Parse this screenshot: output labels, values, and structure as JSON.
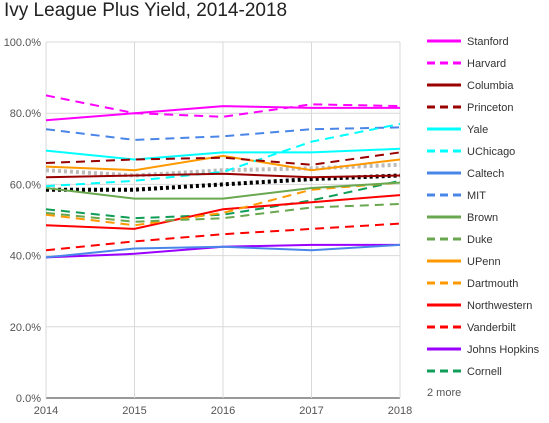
{
  "chart_data": {
    "type": "line",
    "title": "Ivy League Plus Yield, 2014-2018",
    "x": [
      "2014",
      "2015",
      "2016",
      "2017",
      "2018"
    ],
    "ylim": [
      0,
      100
    ],
    "y_ticks": [
      "0.0%",
      "20.0%",
      "40.0%",
      "60.0%",
      "80.0%",
      "100.0%"
    ],
    "grid": true,
    "legend_position": "right",
    "legend_more": "2 more",
    "series": [
      {
        "name": "Stanford",
        "values": [
          78,
          80,
          82,
          81.5,
          81.5
        ],
        "color": "#ff00ff",
        "dashed": false,
        "show_in_legend": true
      },
      {
        "name": "Harvard",
        "values": [
          85,
          80,
          79,
          82.5,
          82
        ],
        "color": "#ff00ff",
        "dashed": true,
        "show_in_legend": true
      },
      {
        "name": "Columbia",
        "values": [
          62,
          62.5,
          63,
          62,
          62.5
        ],
        "color": "#990000",
        "dashed": false,
        "show_in_legend": true
      },
      {
        "name": "Princeton",
        "values": [
          66,
          67,
          67.5,
          65.5,
          69
        ],
        "color": "#990000",
        "dashed": true,
        "show_in_legend": true
      },
      {
        "name": "Yale",
        "values": [
          69.5,
          67,
          69,
          69,
          70
        ],
        "color": "#00ffff",
        "dashed": false,
        "show_in_legend": true
      },
      {
        "name": "UChicago",
        "values": [
          59.5,
          61,
          63.5,
          72,
          77
        ],
        "color": "#00ffff",
        "dashed": true,
        "show_in_legend": true
      },
      {
        "name": "Caltech",
        "values": [
          39.5,
          42,
          42.5,
          41.5,
          43
        ],
        "color": "#4a86e8",
        "dashed": false,
        "show_in_legend": true
      },
      {
        "name": "MIT",
        "values": [
          75.5,
          72.5,
          73.5,
          75.5,
          76
        ],
        "color": "#4a86e8",
        "dashed": true,
        "show_in_legend": true
      },
      {
        "name": "Brown",
        "values": [
          59,
          56,
          56,
          59,
          60.5
        ],
        "color": "#6aa84f",
        "dashed": false,
        "show_in_legend": true
      },
      {
        "name": "Duke",
        "values": [
          52,
          49.5,
          50.5,
          53.5,
          54.5
        ],
        "color": "#6aa84f",
        "dashed": true,
        "show_in_legend": true
      },
      {
        "name": "UPenn",
        "values": [
          65,
          64,
          68,
          64,
          67
        ],
        "color": "#ff9900",
        "dashed": false,
        "show_in_legend": true
      },
      {
        "name": "Dartmouth",
        "values": [
          51.5,
          48.5,
          52,
          58.5,
          60.5
        ],
        "color": "#ff9900",
        "dashed": true,
        "show_in_legend": true
      },
      {
        "name": "Northwestern",
        "values": [
          48.5,
          47.5,
          53,
          55,
          57
        ],
        "color": "#ff0000",
        "dashed": false,
        "show_in_legend": true
      },
      {
        "name": "Vanderbilt",
        "values": [
          41.5,
          44,
          46,
          47.5,
          49
        ],
        "color": "#ff0000",
        "dashed": true,
        "show_in_legend": true
      },
      {
        "name": "Johns Hopkins",
        "values": [
          39.5,
          40.5,
          42.5,
          43,
          43
        ],
        "color": "#9900ff",
        "dashed": false,
        "show_in_legend": true
      },
      {
        "name": "Cornell",
        "values": [
          53,
          50.5,
          51.5,
          55.5,
          61
        ],
        "color": "#0f9d58",
        "dashed": true,
        "show_in_legend": true
      },
      {
        "name": "",
        "values": [
          58.5,
          58.5,
          60,
          61.5,
          62.5
        ],
        "color": "#000000",
        "dashed": true,
        "dotted": true,
        "show_in_legend": false
      },
      {
        "name": "",
        "values": [
          64,
          62.5,
          64,
          64.5,
          65.5
        ],
        "color": "#bbbbbb",
        "dashed": true,
        "dotted": true,
        "show_in_legend": false
      }
    ]
  }
}
